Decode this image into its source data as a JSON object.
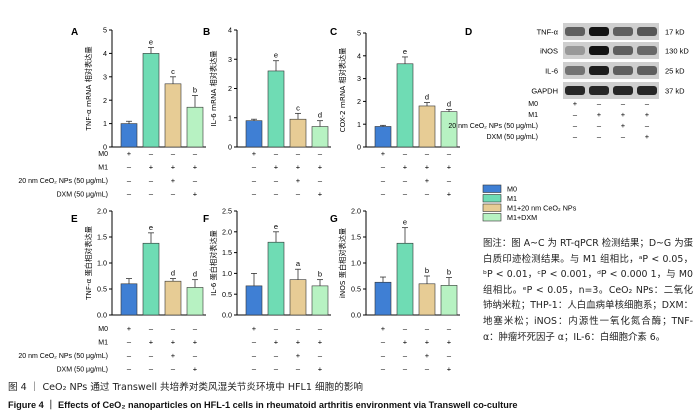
{
  "colors": {
    "M0": "#3f7fd4",
    "M1": "#6fdcb4",
    "M1_CeO2": "#e7cc95",
    "M1_DXM": "#b7f2c2"
  },
  "groups": [
    "M0",
    "M1",
    "M1+20 nm CeO₂ NPs",
    "M1+DXM"
  ],
  "treatments": [
    {
      "label": "M0",
      "values": [
        "+",
        "–",
        "–",
        "–"
      ]
    },
    {
      "label": "M1",
      "values": [
        "–",
        "+",
        "+",
        "+"
      ]
    },
    {
      "label": "20 nm CeO₂ NPs (50 μg/mL)",
      "values": [
        "–",
        "–",
        "+",
        "–"
      ]
    },
    {
      "label": "DXM (50 μg/mL)",
      "values": [
        "–",
        "–",
        "–",
        "+"
      ]
    }
  ],
  "chart_data": [
    {
      "type": "bar",
      "panel": "A",
      "ylabel": "TNF-α mRNA 相对表达量",
      "ylim": [
        0,
        5
      ],
      "yticks": [
        0,
        1,
        2,
        3,
        4,
        5
      ],
      "categories": [
        "M0",
        "M1",
        "M1+20 nm CeO₂ NPs",
        "M1+DXM"
      ],
      "values": [
        1.0,
        4.0,
        2.7,
        1.7
      ],
      "errors": [
        0.1,
        0.25,
        0.3,
        0.5
      ],
      "annotations": [
        "",
        "e",
        "c",
        "b"
      ],
      "show_row_labels": true
    },
    {
      "type": "bar",
      "panel": "B",
      "ylabel": "IL-6 mRNA 相对表达量",
      "ylim": [
        0,
        4
      ],
      "yticks": [
        0,
        1,
        2,
        3,
        4
      ],
      "categories": [
        "M0",
        "M1",
        "M1+20 nm CeO₂ NPs",
        "M1+DXM"
      ],
      "values": [
        0.9,
        2.6,
        0.95,
        0.7
      ],
      "errors": [
        0.05,
        0.35,
        0.2,
        0.2
      ],
      "annotations": [
        "",
        "e",
        "c",
        "d"
      ],
      "show_row_labels": false
    },
    {
      "type": "bar",
      "panel": "C",
      "ylabel": "COX-2 mRNA 相对表达量",
      "ylim": [
        0,
        5
      ],
      "yticks": [
        0,
        1,
        2,
        3,
        4,
        5
      ],
      "categories": [
        "M0",
        "M1",
        "M1+20 nm CeO₂ NPs",
        "M1+DXM"
      ],
      "values": [
        0.9,
        3.65,
        1.8,
        1.55
      ],
      "errors": [
        0.05,
        0.3,
        0.15,
        0.1
      ],
      "annotations": [
        "",
        "e",
        "d",
        "d"
      ],
      "show_row_labels": false
    },
    {
      "type": "bar",
      "panel": "E",
      "ylabel": "TNF-α 蛋白相对表达量",
      "ylim": [
        0,
        2
      ],
      "yticks": [
        0,
        0.5,
        1.0,
        1.5,
        2.0
      ],
      "categories": [
        "M0",
        "M1",
        "M1+20 nm CeO₂ NPs",
        "M1+DXM"
      ],
      "values": [
        0.6,
        1.38,
        0.65,
        0.53
      ],
      "errors": [
        0.1,
        0.2,
        0.05,
        0.15
      ],
      "annotations": [
        "",
        "e",
        "d",
        "d"
      ],
      "show_row_labels": true
    },
    {
      "type": "bar",
      "panel": "F",
      "ylabel": "IL-6 蛋白相对表达量",
      "ylim": [
        0,
        2.5
      ],
      "yticks": [
        0,
        0.5,
        1.0,
        1.5,
        2.0,
        2.5
      ],
      "categories": [
        "M0",
        "M1",
        "M1+20 nm CeO₂ NPs",
        "M1+DXM"
      ],
      "values": [
        0.7,
        1.75,
        0.85,
        0.7
      ],
      "errors": [
        0.3,
        0.25,
        0.25,
        0.15
      ],
      "annotations": [
        "",
        "e",
        "a",
        "b"
      ],
      "show_row_labels": false
    },
    {
      "type": "bar",
      "panel": "G",
      "ylabel": "iNOS 蛋白相对表达量",
      "ylim": [
        0,
        2
      ],
      "yticks": [
        0,
        0.5,
        1.0,
        1.5,
        2.0
      ],
      "categories": [
        "M0",
        "M1",
        "M1+20 nm CeO₂ NPs",
        "M1+DXM"
      ],
      "values": [
        0.63,
        1.38,
        0.6,
        0.57
      ],
      "errors": [
        0.1,
        0.3,
        0.15,
        0.15
      ],
      "annotations": [
        "",
        "e",
        "b",
        "b"
      ],
      "show_row_labels": false
    }
  ],
  "blot": {
    "panel": "D",
    "bands": [
      {
        "protein": "TNF-α",
        "size": "17 kD"
      },
      {
        "protein": "iNOS",
        "size": "130 kD"
      },
      {
        "protein": "IL-6",
        "size": "25 kD"
      },
      {
        "protein": "GAPDH",
        "size": "37 kD"
      }
    ]
  },
  "note": "图注：图 A~C 为 RT-qPCR 检测结果；D~G 为蛋白质印迹检测结果。与 M1 组相比，ᵃP < 0.05，ᵇP < 0.01，ᶜP < 0.001，ᵈP < 0.000 1，与 M0 组相比。ᵉP < 0.05，n=3。CeO₂ NPs：二氧化铈纳米粒；THP-1：人白血病单核细胞系；DXM：地塞米松；iNOS：内源性一氧化氮合酶；TNF-α：肿瘤坏死因子 α；IL-6：白细胞介素 6。",
  "caption_cn": "图 4 ｜ CeO₂ NPs 通过 Transwell 共培养对类风湿关节炎环境中 HFL1 细胞的影响",
  "caption_en": "Figure 4 ｜ Effects of CeO₂ nanoparticles on HFL-1 cells in rheumatoid arthritis environment via Transwell co-culture"
}
